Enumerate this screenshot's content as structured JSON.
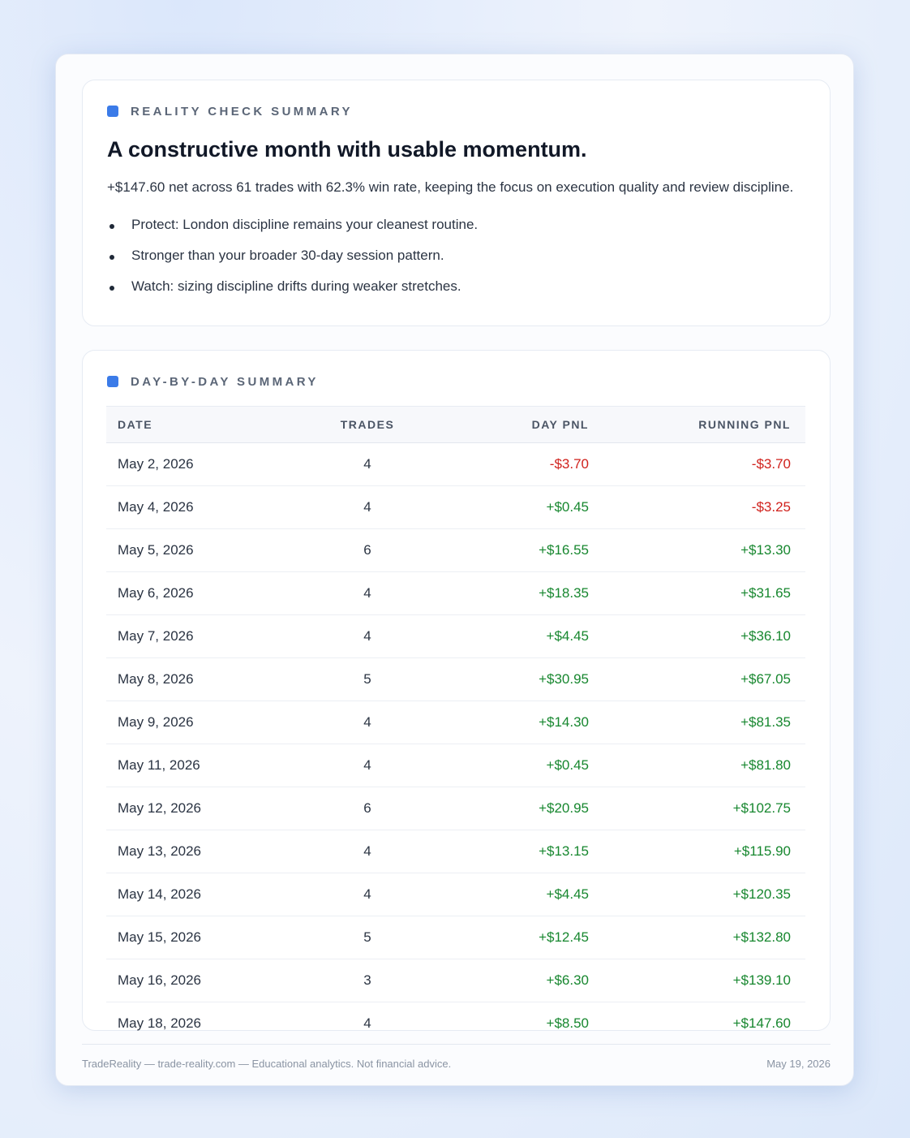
{
  "summary": {
    "label": "REALITY CHECK SUMMARY",
    "title": "A constructive month with usable momentum.",
    "text": "+$147.60 net across 61 trades with 62.3% win rate, keeping the focus on execution quality and review discipline.",
    "bullets": [
      "Protect: London discipline remains your cleanest routine.",
      "Stronger than your broader 30-day session pattern.",
      "Watch: sizing discipline drifts during weaker stretches."
    ]
  },
  "table": {
    "label": "DAY-BY-DAY SUMMARY",
    "headers": [
      "DATE",
      "TRADES",
      "DAY PNL",
      "RUNNING PNL"
    ],
    "rows": [
      [
        "May 2, 2026",
        "4",
        "-$3.70",
        "-$3.70"
      ],
      [
        "May 4, 2026",
        "4",
        "+$0.45",
        "-$3.25"
      ],
      [
        "May 5, 2026",
        "6",
        "+$16.55",
        "+$13.30"
      ],
      [
        "May 6, 2026",
        "4",
        "+$18.35",
        "+$31.65"
      ],
      [
        "May 7, 2026",
        "4",
        "+$4.45",
        "+$36.10"
      ],
      [
        "May 8, 2026",
        "5",
        "+$30.95",
        "+$67.05"
      ],
      [
        "May 9, 2026",
        "4",
        "+$14.30",
        "+$81.35"
      ],
      [
        "May 11, 2026",
        "4",
        "+$0.45",
        "+$81.80"
      ],
      [
        "May 12, 2026",
        "6",
        "+$20.95",
        "+$102.75"
      ],
      [
        "May 13, 2026",
        "4",
        "+$13.15",
        "+$115.90"
      ],
      [
        "May 14, 2026",
        "4",
        "+$4.45",
        "+$120.35"
      ],
      [
        "May 15, 2026",
        "5",
        "+$12.45",
        "+$132.80"
      ],
      [
        "May 16, 2026",
        "3",
        "+$6.30",
        "+$139.10"
      ],
      [
        "May 18, 2026",
        "4",
        "+$8.50",
        "+$147.60"
      ]
    ]
  },
  "footer": {
    "left": "TradeReality — trade-reality.com — Educational analytics. Not financial advice.",
    "right": "May 19, 2026"
  }
}
